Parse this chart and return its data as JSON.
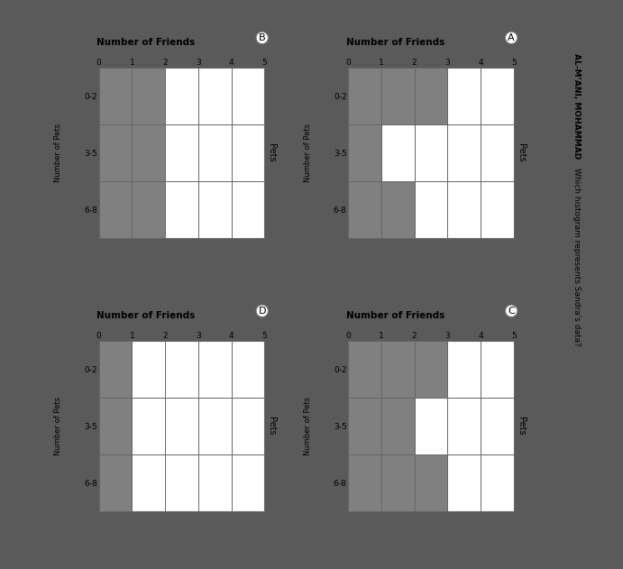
{
  "page_bg": "#ffffff",
  "outer_bg": "#5a5a5a",
  "card_bg": "#f0f0f0",
  "filled_color": "#808080",
  "empty_color": "#ffffff",
  "border_color": "#666666",
  "sidebar_bg": "#c8c8c8",
  "charts": [
    {
      "label": "B",
      "col": 0,
      "row": 0,
      "rows": [
        "0-2",
        "3-5",
        "6-8"
      ],
      "bars": [
        2,
        2,
        2
      ],
      "total": 5
    },
    {
      "label": "A",
      "col": 1,
      "row": 0,
      "rows": [
        "0-2",
        "3-5",
        "6-8"
      ],
      "bars": [
        3,
        1,
        2
      ],
      "total": 5
    },
    {
      "label": "D",
      "col": 0,
      "row": 1,
      "rows": [
        "0-2",
        "3-5",
        "6-8"
      ],
      "bars": [
        1,
        1,
        1
      ],
      "total": 5
    },
    {
      "label": "C",
      "col": 1,
      "row": 1,
      "rows": [
        "0-2",
        "3-5",
        "6-8"
      ],
      "bars": [
        3,
        2,
        3
      ],
      "total": 5
    }
  ],
  "title_text": "Which histogram represents Sandra's data?",
  "author_text": "AL-M’ANI, MOHAMMAD"
}
